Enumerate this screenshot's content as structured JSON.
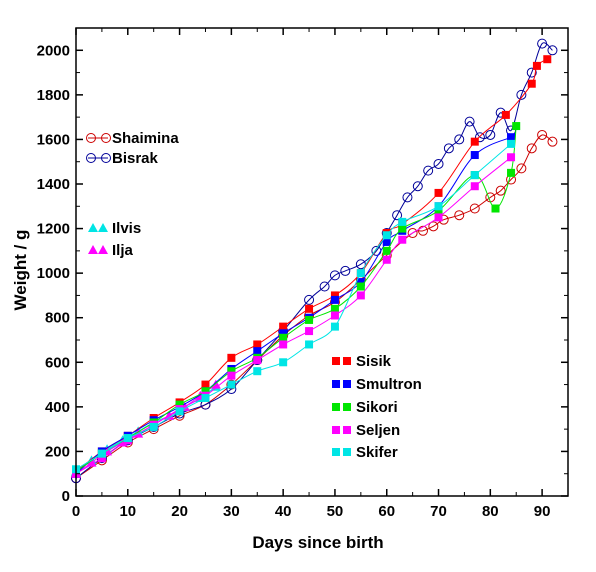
{
  "chart_data": {
    "type": "line",
    "xlabel": "Days since birth",
    "ylabel": "Weight / g",
    "xlim": [
      0,
      95
    ],
    "ylim": [
      0,
      2100
    ],
    "xticks": [
      0,
      10,
      20,
      30,
      40,
      50,
      60,
      70,
      80,
      90
    ],
    "yticks": [
      0,
      200,
      400,
      600,
      800,
      1000,
      1200,
      1400,
      1600,
      1800,
      2000
    ],
    "grid": false,
    "series": [
      {
        "name": "Shaimina",
        "color": "#cc0000",
        "marker": "open-circle",
        "x": [
          0,
          5,
          10,
          15,
          20,
          25,
          30,
          35,
          40,
          45,
          50,
          55,
          60,
          65,
          67,
          69,
          71,
          74,
          77,
          80,
          82,
          84,
          86,
          88,
          90,
          92
        ],
        "y": [
          80,
          160,
          240,
          300,
          360,
          410,
          500,
          610,
          720,
          810,
          870,
          970,
          1080,
          1180,
          1190,
          1210,
          1240,
          1260,
          1290,
          1340,
          1370,
          1420,
          1470,
          1560,
          1620,
          1590
        ]
      },
      {
        "name": "Bisrak",
        "color": "#000099",
        "marker": "open-circle",
        "x": [
          0,
          5,
          10,
          15,
          20,
          25,
          30,
          35,
          40,
          45,
          48,
          50,
          52,
          55,
          58,
          60,
          62,
          64,
          66,
          68,
          70,
          72,
          74,
          76,
          78,
          80,
          82,
          84,
          86,
          88,
          90,
          92
        ],
        "y": [
          80,
          170,
          250,
          310,
          370,
          410,
          480,
          610,
          740,
          880,
          940,
          990,
          1010,
          1040,
          1100,
          1180,
          1260,
          1340,
          1390,
          1460,
          1490,
          1560,
          1600,
          1680,
          1610,
          1620,
          1720,
          1640,
          1800,
          1900,
          2030,
          2000
        ]
      },
      {
        "name": "Ilvis",
        "color": "#00e5e5",
        "marker": "filled-triangle",
        "x": [
          0,
          3,
          6,
          9,
          12,
          15,
          18,
          21,
          24,
          27
        ],
        "y": [
          110,
          160,
          210,
          250,
          290,
          330,
          360,
          400,
          440,
          490
        ]
      },
      {
        "name": "Ilja",
        "color": "#ff00ff",
        "marker": "filled-triangle",
        "x": [
          0,
          3,
          6,
          9,
          12,
          15,
          18,
          21,
          24,
          27
        ],
        "y": [
          100,
          150,
          200,
          240,
          280,
          320,
          360,
          400,
          450,
          500
        ]
      },
      {
        "name": "Sisik",
        "color": "#ff0000",
        "marker": "filled-square",
        "x": [
          0,
          5,
          10,
          15,
          20,
          25,
          30,
          35,
          40,
          45,
          50,
          55,
          60,
          63,
          70,
          77,
          83,
          88,
          89,
          91
        ],
        "y": [
          110,
          200,
          270,
          350,
          420,
          500,
          620,
          680,
          760,
          840,
          900,
          1000,
          1180,
          1220,
          1360,
          1590,
          1710,
          1850,
          1930,
          1960
        ]
      },
      {
        "name": "Smultron",
        "color": "#0000ff",
        "marker": "filled-square",
        "x": [
          0,
          5,
          10,
          15,
          20,
          25,
          30,
          35,
          40,
          45,
          50,
          55,
          60,
          63,
          70,
          77,
          84
        ],
        "y": [
          100,
          200,
          270,
          340,
          400,
          470,
          570,
          650,
          730,
          800,
          880,
          960,
          1140,
          1190,
          1300,
          1530,
          1610
        ]
      },
      {
        "name": "Sikori",
        "color": "#00e600",
        "marker": "filled-square",
        "x": [
          0,
          5,
          10,
          15,
          20,
          25,
          30,
          35,
          40,
          45,
          50,
          55,
          60,
          63,
          70,
          77,
          81,
          84,
          85
        ],
        "y": [
          110,
          190,
          260,
          330,
          410,
          470,
          560,
          620,
          710,
          790,
          840,
          940,
          1100,
          1200,
          1280,
          1440,
          1290,
          1450,
          1660
        ]
      },
      {
        "name": "Seljen",
        "color": "#ff00ff",
        "marker": "filled-square",
        "x": [
          0,
          5,
          10,
          15,
          20,
          25,
          30,
          35,
          40,
          45,
          50,
          55,
          60,
          63,
          70,
          77,
          84
        ],
        "y": [
          100,
          170,
          250,
          320,
          390,
          450,
          540,
          610,
          680,
          740,
          810,
          900,
          1060,
          1150,
          1250,
          1390,
          1520
        ]
      },
      {
        "name": "Skifer",
        "color": "#00e5e5",
        "marker": "filled-square",
        "x": [
          0,
          5,
          10,
          15,
          20,
          25,
          30,
          35,
          40,
          45,
          50,
          55,
          60,
          63,
          70,
          77,
          84
        ],
        "y": [
          120,
          190,
          260,
          310,
          380,
          440,
          500,
          560,
          600,
          680,
          760,
          1000,
          1170,
          1230,
          1300,
          1440,
          1580
        ]
      }
    ],
    "legend": [
      {
        "label": "Shaimina",
        "series": 0
      },
      {
        "label": "Bisrak",
        "series": 1
      },
      {
        "label": "Ilvis",
        "series": 2
      },
      {
        "label": "Ilja",
        "series": 3
      },
      {
        "label": "Sisik",
        "series": 4
      },
      {
        "label": "Smultron",
        "series": 5
      },
      {
        "label": "Sikori",
        "series": 6
      },
      {
        "label": "Seljen",
        "series": 7
      },
      {
        "label": "Skifer",
        "series": 8
      }
    ]
  }
}
